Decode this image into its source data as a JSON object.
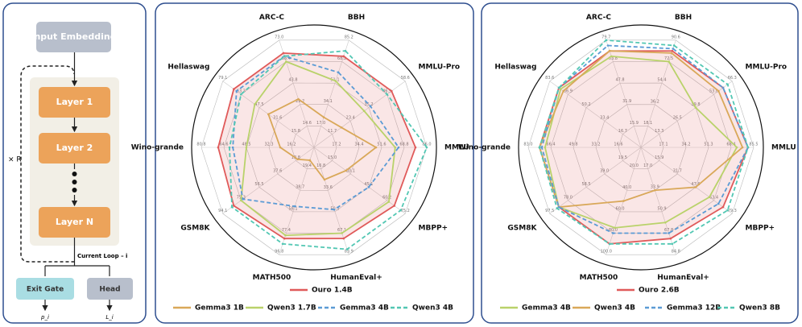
{
  "diagram": {
    "input": "Input Embedding",
    "layers": [
      "Layer 1",
      "Layer 2",
      "Layer N"
    ],
    "repeat": "× R",
    "loop": "Current Loop – i",
    "exit": "Exit Gate",
    "head": "Head",
    "exit_out": "p_i",
    "head_out": "L_i"
  },
  "chart_data": [
    {
      "type": "radar",
      "axes": [
        {
          "label": "BBH",
          "lim": [
            0,
            85.2
          ],
          "ticks": [
            {
              "value": 17,
              "label": "17.0"
            },
            34.1,
            51.1,
            68.2,
            85.2
          ]
        },
        {
          "label": "MMLU-Pro",
          "lim": [
            0,
            58.6
          ],
          "ticks": [
            11.7,
            23.4,
            35.2,
            46.9,
            58.6
          ]
        },
        {
          "label": "MMLU",
          "lim": [
            0,
            86
          ],
          "ticks": [
            17.2,
            34.4,
            51.6,
            68.8,
            {
              "value": 86,
              "label": "86.0"
            }
          ]
        },
        {
          "label": "MBPP+",
          "lim": [
            0,
            75.2
          ],
          "ticks": [
            {
              "value": 15,
              "label": "15.0"
            },
            30.1,
            45.1,
            60.2,
            75.2
          ]
        },
        {
          "label": "HumanEval+",
          "lim": [
            0,
            83.9
          ],
          "ticks": [
            16.8,
            33.6,
            50.3,
            67.1,
            83.9
          ]
        },
        {
          "label": "MATH500",
          "lim": [
            0,
            96.8
          ],
          "ticks": [
            19.4,
            38.7,
            58.1,
            77.4,
            96.8
          ]
        },
        {
          "label": "GSM8K",
          "lim": [
            0,
            94.1
          ],
          "ticks": [
            18.8,
            37.6,
            56.5,
            75.3,
            94.1
          ]
        },
        {
          "label": "Wino-grande",
          "lim": [
            0,
            80.8
          ],
          "ticks": [
            16.2,
            32.3,
            48.5,
            64.6,
            80.8
          ]
        },
        {
          "label": "Hellaswag",
          "lim": [
            0,
            79.1
          ],
          "ticks": [
            15.8,
            31.6,
            47.5,
            63.3,
            79.1
          ]
        },
        {
          "label": "ARC-C",
          "lim": [
            0,
            73
          ],
          "ticks": [
            14.6,
            29.2,
            43.8,
            58.4,
            {
              "value": 73,
              "label": "73.0"
            }
          ]
        }
      ],
      "series": [
        {
          "name": "Ouro 1.4B",
          "color": "#e05a5a",
          "fill": true,
          "dashed": false,
          "values": [
            72.4,
            49.8,
            77.4,
            66.2,
            71.3,
            82.3,
            82.8,
            68.7,
            69.6,
            64.2
          ]
        },
        {
          "name": "Gemma3 1B",
          "color": "#d9a859",
          "fill": false,
          "dashed": false,
          "values": [
            23.9,
            17.6,
            47.3,
            26.3,
            25.2,
            11.6,
            16.9,
            24.2,
            39.6,
            32.9
          ]
        },
        {
          "name": "Qwen3 1.7B",
          "color": "#b9d26a",
          "fill": false,
          "dashed": false,
          "values": [
            52.8,
            32.2,
            61.9,
            61.7,
            67.1,
            79.4,
            75.3,
            48.5,
            51.4,
            58.4
          ]
        },
        {
          "name": "Gemma3 4B",
          "color": "#5b9bd5",
          "fill": false,
          "dashed": true,
          "values": [
            59.6,
            36.3,
            64.5,
            45.1,
            48.7,
            53.2,
            73.4,
            58.2,
            67.2,
            62.1
          ]
        },
        {
          "name": "Qwen3 4B",
          "color": "#52c7b3",
          "fill": false,
          "dashed": true,
          "values": [
            76.7,
            46.9,
            86,
            71.4,
            79.7,
            87.1,
            84.7,
            60.6,
            63.3,
            62.1
          ]
        }
      ]
    },
    {
      "type": "radar",
      "axes": [
        {
          "label": "BBH",
          "lim": [
            0,
            90.6
          ],
          "ticks": [
            18.1,
            36.2,
            54.4,
            72.5,
            90.6
          ]
        },
        {
          "label": "MMLU-Pro",
          "lim": [
            0,
            66.3
          ],
          "ticks": [
            13.3,
            26.5,
            39.8,
            {
              "value": 53,
              "label": "53.0"
            },
            66.3
          ]
        },
        {
          "label": "MMLU",
          "lim": [
            0,
            85.5
          ],
          "ticks": [
            17.1,
            34.2,
            51.3,
            68.4,
            85.5
          ]
        },
        {
          "label": "MBPP+",
          "lim": [
            0,
            79.3
          ],
          "ticks": [
            15.9,
            31.7,
            47.6,
            63.4,
            79.3
          ]
        },
        {
          "label": "HumanEval+",
          "lim": [
            0,
            84.8
          ],
          "ticks": [
            {
              "value": 17,
              "label": "17.0"
            },
            33.9,
            50.9,
            67.8,
            84.8
          ]
        },
        {
          "label": "MATH500",
          "lim": [
            0,
            100
          ],
          "ticks": [
            {
              "value": 20,
              "label": "20.0"
            },
            {
              "value": 40,
              "label": "40.0"
            },
            {
              "value": 60,
              "label": "60.0"
            },
            {
              "value": 80,
              "label": "80.0"
            },
            {
              "value": 100,
              "label": "100.0"
            }
          ]
        },
        {
          "label": "GSM8K",
          "lim": [
            0,
            97.5
          ],
          "ticks": [
            19.5,
            {
              "value": 39,
              "label": "39.0"
            },
            58.5,
            {
              "value": 78,
              "label": "78.0"
            },
            97.5
          ]
        },
        {
          "label": "Wino-grande",
          "lim": [
            0,
            83
          ],
          "ticks": [
            16.6,
            33.2,
            49.8,
            66.4,
            {
              "value": 83,
              "label": "83.0"
            }
          ]
        },
        {
          "label": "Hellaswag",
          "lim": [
            0,
            83.6
          ],
          "ticks": [
            16.7,
            33.4,
            50.2,
            66.9,
            83.6
          ]
        },
        {
          "label": "ARC-C",
          "lim": [
            0,
            79.7
          ],
          "ticks": [
            15.9,
            31.9,
            47.8,
            63.8,
            79.7
          ]
        }
      ],
      "series": [
        {
          "name": "Ouro 2.6B",
          "color": "#e05a5a",
          "fill": true,
          "dashed": false,
          "values": [
            81.5,
            59.7,
            81.2,
            71.4,
            72.1,
            90,
            87.8,
            74.7,
            75.2,
            71.7
          ]
        },
        {
          "name": "Gemma3 4B",
          "color": "#b9d26a",
          "fill": false,
          "dashed": false,
          "values": [
            72.5,
            39.8,
            72.7,
            59.5,
            59.4,
            75,
            87.8,
            70.6,
            73.6,
            67.7
          ]
        },
        {
          "name": "Qwen3 4B",
          "color": "#d9a859",
          "fill": false,
          "dashed": false,
          "values": [
            79.7,
            56.4,
            77,
            47.6,
            33.9,
            50,
            87.8,
            74.7,
            71.1,
            71.7
          ]
        },
        {
          "name": "Gemma3 12B",
          "color": "#5b9bd5",
          "fill": false,
          "dashed": true,
          "values": [
            83.4,
            59.7,
            81.2,
            67.4,
            67.8,
            80,
            87.8,
            73,
            75.2,
            75.7
          ]
        },
        {
          "name": "Qwen3 8B",
          "color": "#52c7b3",
          "fill": false,
          "dashed": true,
          "values": [
            86.1,
            63,
            81.2,
            75.3,
            76.3,
            90,
            89.7,
            74.7,
            75.2,
            79.7
          ]
        }
      ]
    }
  ]
}
